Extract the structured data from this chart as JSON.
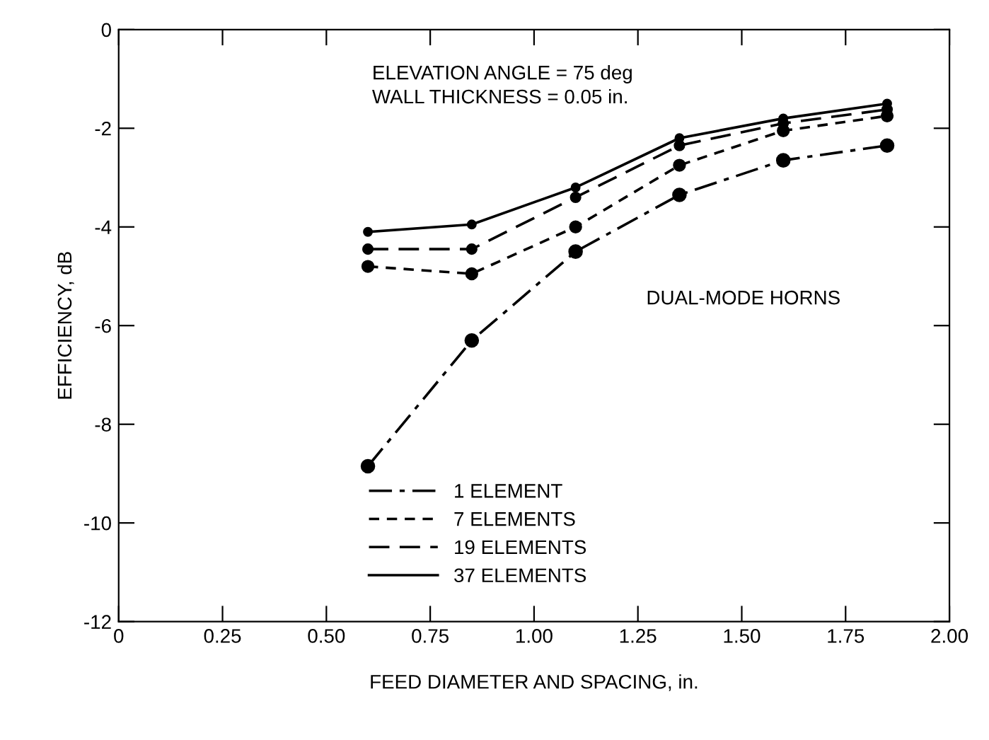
{
  "chart_data": {
    "type": "line",
    "xlabel": "FEED DIAMETER AND SPACING, in.",
    "ylabel": "EFFICIENCY, dB",
    "x": [
      0.6,
      0.85,
      1.1,
      1.35,
      1.6,
      1.85
    ],
    "series": [
      {
        "name": "1 ELEMENT",
        "color": "#000000",
        "line_style": "dashdot",
        "values": [
          -8.85,
          -6.3,
          -4.5,
          -3.35,
          -2.65,
          -2.35
        ]
      },
      {
        "name": "7 ELEMENTS",
        "color": "#000000",
        "line_style": "dashed",
        "values": [
          -4.8,
          -4.95,
          -4.0,
          -2.75,
          -2.05,
          -1.75
        ]
      },
      {
        "name": "19 ELEMENTS",
        "color": "#000000",
        "line_style": "longdash",
        "values": [
          -4.45,
          -4.45,
          -3.4,
          -2.35,
          -1.9,
          -1.62
        ]
      },
      {
        "name": "37 ELEMENTS",
        "color": "#000000",
        "line_style": "solid",
        "values": [
          -4.1,
          -3.95,
          -3.2,
          -2.2,
          -1.8,
          -1.5
        ]
      }
    ],
    "marker": "circle",
    "xlim": [
      0,
      2.0
    ],
    "xticks": [
      0,
      {
        "value": 0.25,
        "label": "0.25"
      },
      {
        "value": 0.5,
        "label": "0.50"
      },
      {
        "value": 0.75,
        "label": "0.75"
      },
      {
        "value": 1.0,
        "label": "1.00"
      },
      {
        "value": 1.25,
        "label": "1.25"
      },
      {
        "value": 1.5,
        "label": "1.50"
      },
      {
        "value": 1.75,
        "label": "1.75"
      },
      {
        "value": 2.0,
        "label": "2.00"
      }
    ],
    "ylim": [
      -12,
      0
    ],
    "yticks": [
      -12,
      -10,
      -8,
      -6,
      -4,
      -2,
      0
    ],
    "annotations": [
      "ELEVATION ANGLE = 75 deg\nWALL THICKNESS = 0.05 in.",
      "DUAL-MODE HORNS"
    ],
    "legend": "bottom",
    "grid": false
  }
}
